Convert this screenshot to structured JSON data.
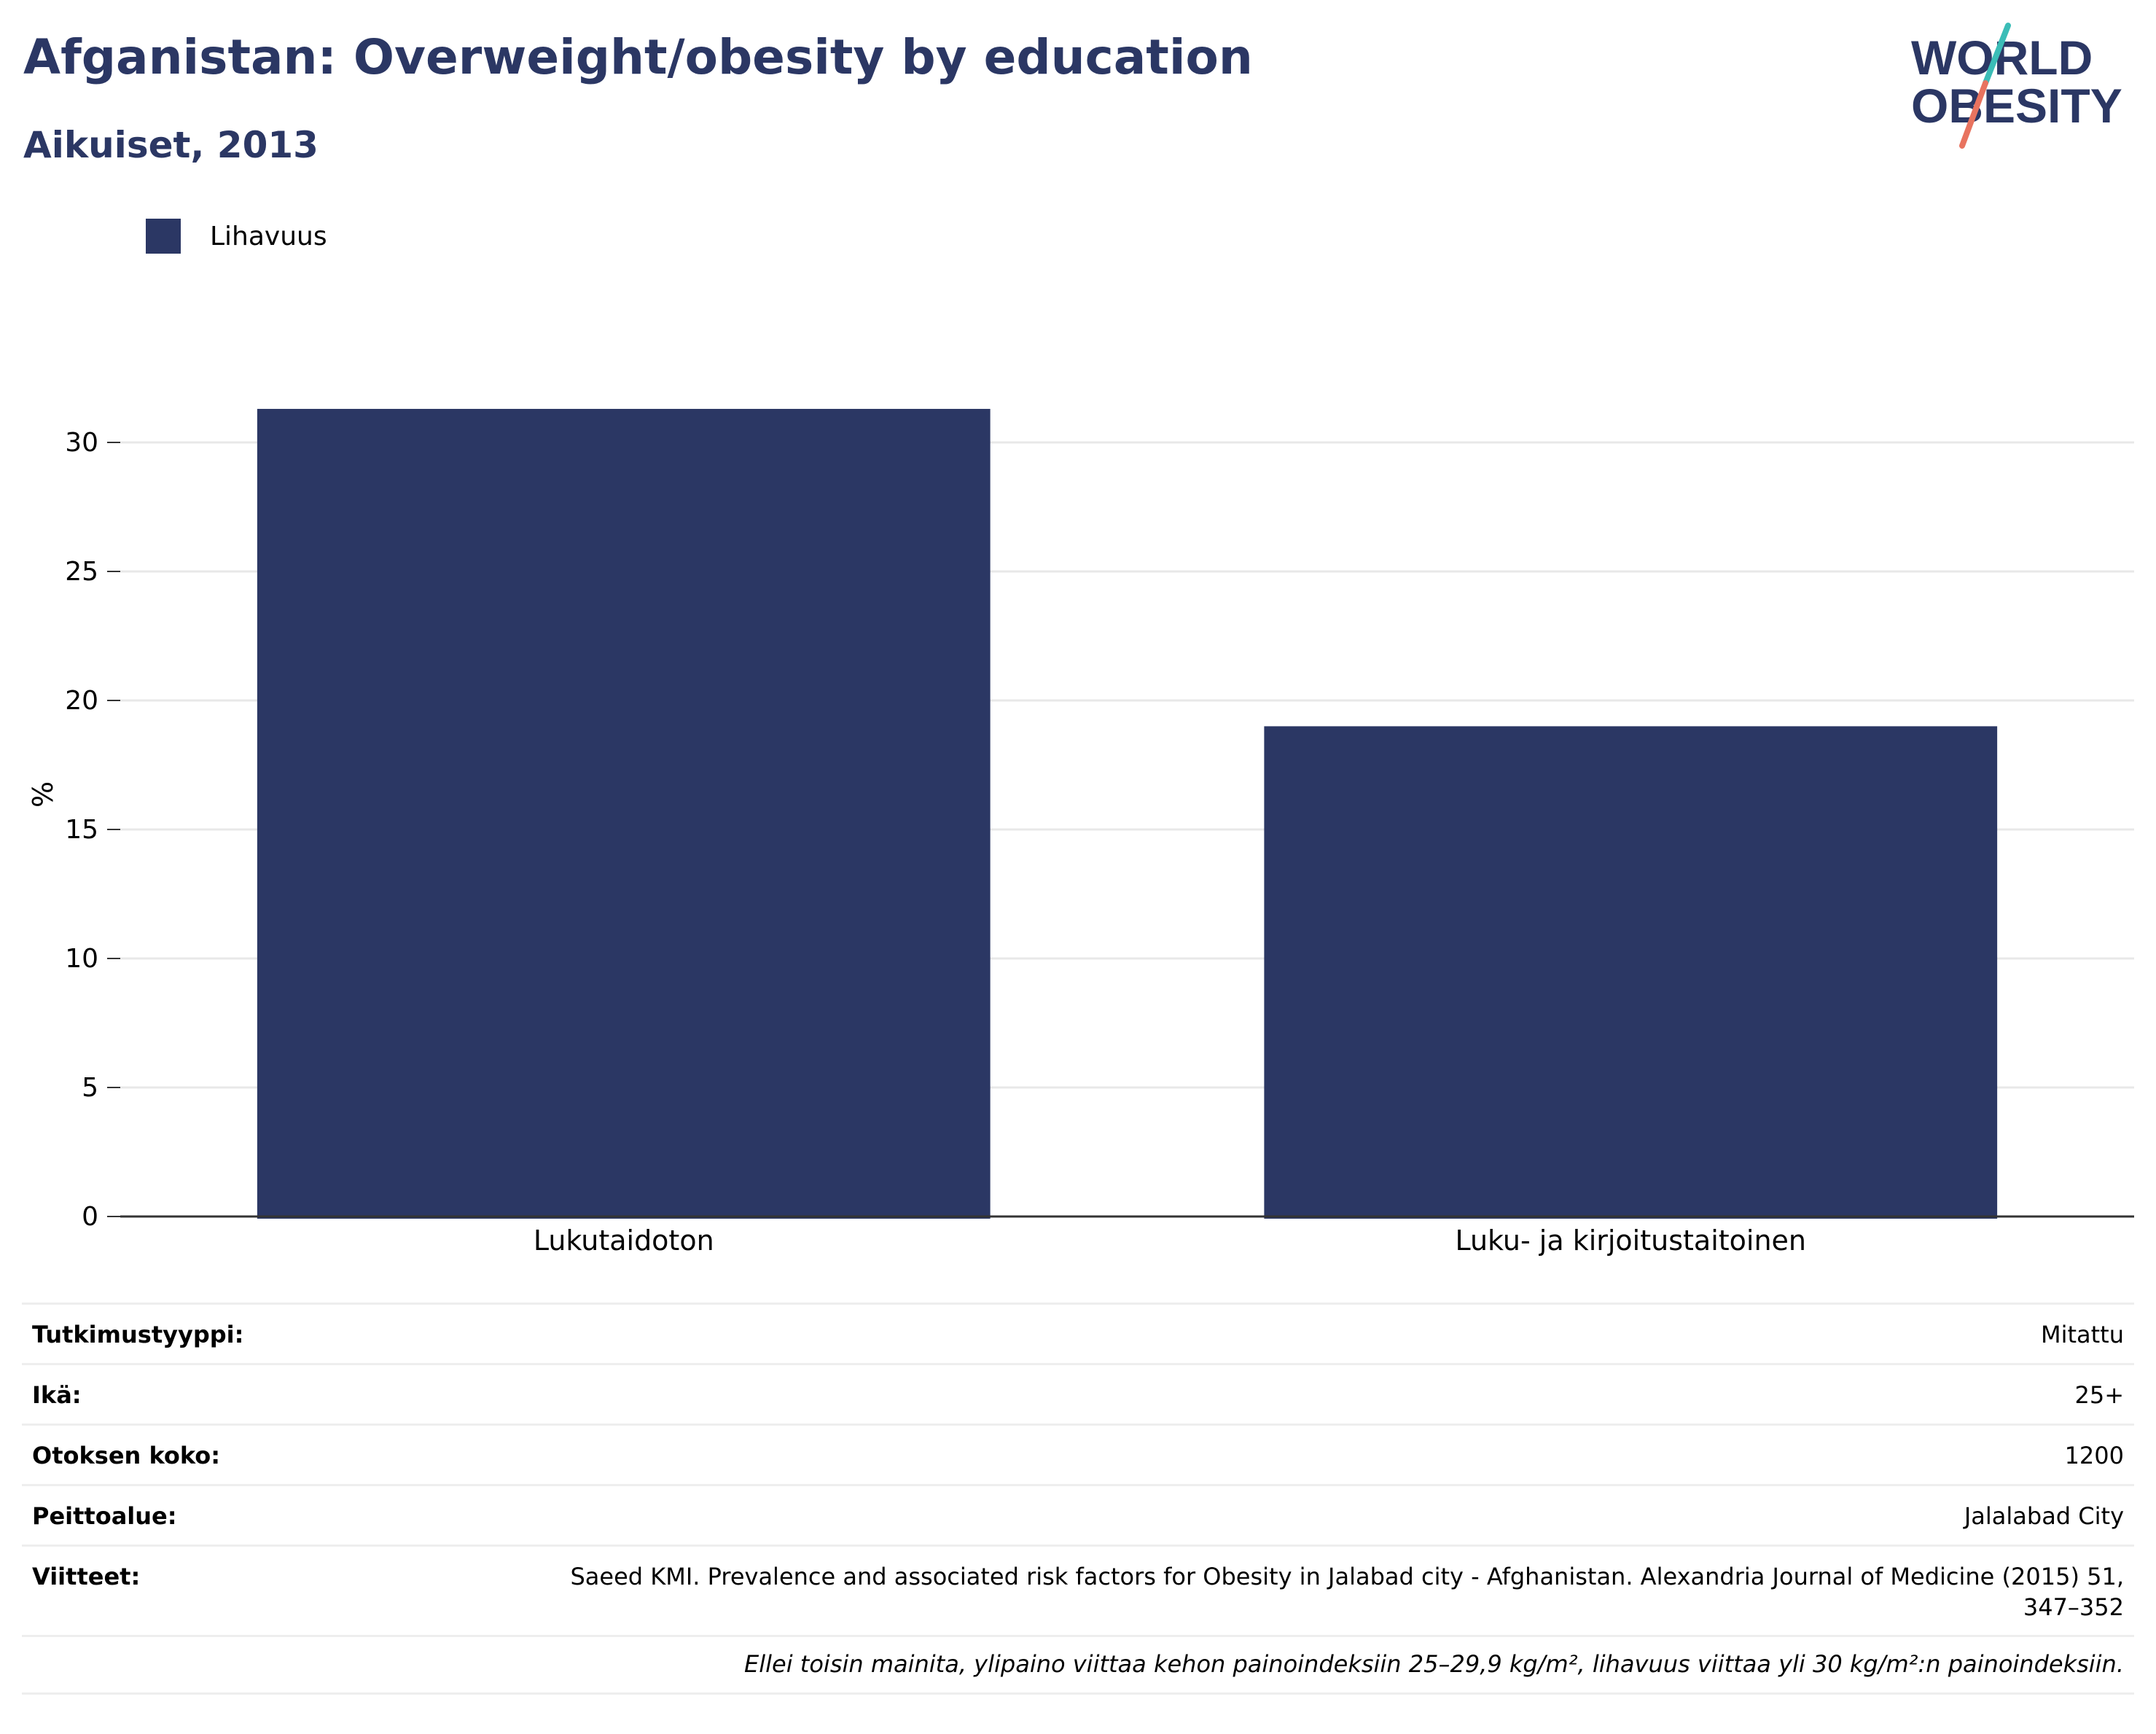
{
  "header": {
    "title": "Afganistan: Overweight/obesity by education",
    "subtitle": "Aikuiset, 2013"
  },
  "logo": {
    "line1": "WORLD",
    "line2": "OBESITY",
    "colors": {
      "text": "#2b3764",
      "slash_top": "#3bbdb7",
      "slash_bottom": "#e8735f"
    }
  },
  "chart_data": {
    "type": "bar",
    "categories": [
      "Lukutaidoton",
      "Luku- ja kirjoitustaitoinen"
    ],
    "series": [
      {
        "name": "Lihavuus",
        "values": [
          31.3,
          19.0
        ],
        "color": "#2b3764"
      }
    ],
    "ylabel": "%",
    "xlabel": "",
    "ylim": [
      0,
      33
    ],
    "yticks": [
      0,
      5,
      10,
      15,
      20,
      25,
      30
    ],
    "grid": true,
    "legend": "top-left"
  },
  "details": {
    "rows": [
      {
        "label": "Tutkimustyyppi:",
        "value": "Mitattu"
      },
      {
        "label": "Ikä:",
        "value": "25+"
      },
      {
        "label": "Otoksen koko:",
        "value": "1200"
      },
      {
        "label": "Peittoalue:",
        "value": "Jalalabad City"
      },
      {
        "label": "Viitteet:",
        "value_line1": "Saeed KMI. Prevalence and associated risk factors for Obesity in Jalabad city - Afghanistan. Alexandria Journal of Medicine (2015) 51,",
        "value_line2": "347–352"
      }
    ],
    "note": "Ellei toisin mainita, ylipaino viittaa kehon painoindeksiin 25–29,9 kg/m², lihavuus viittaa yli 30 kg/m²:n painoindeksiin."
  }
}
